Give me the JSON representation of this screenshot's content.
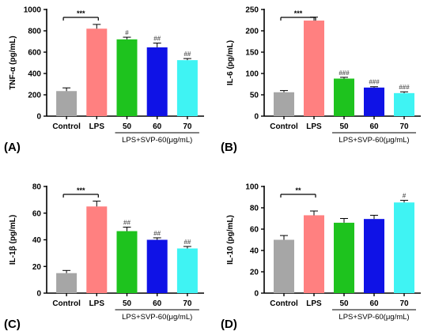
{
  "chart_data": [
    {
      "panel": "(A)",
      "type": "bar",
      "ylabel": "TNF-α (pg/mL)",
      "ylim": [
        0,
        1000
      ],
      "yticks": [
        0,
        200,
        400,
        600,
        800,
        1000
      ],
      "categories": [
        "Control",
        "LPS",
        "50",
        "60",
        "70"
      ],
      "values": [
        235,
        820,
        720,
        645,
        525
      ],
      "errors": [
        30,
        40,
        20,
        40,
        15
      ],
      "significance": [
        "",
        "",
        "#",
        "##",
        "##"
      ],
      "bracket": {
        "from": 0,
        "to": 1,
        "label": "***"
      },
      "group_label": "LPS+SVP-60(μg/mL)",
      "colors": [
        "#a6a6a6",
        "#ff8080",
        "#1ec31e",
        "#0f12e6",
        "#3ff3f3"
      ]
    },
    {
      "panel": "(B)",
      "type": "bar",
      "ylabel": "IL-6 (pg/mL)",
      "ylim": [
        0,
        250
      ],
      "yticks": [
        0,
        50,
        100,
        150,
        200,
        250
      ],
      "categories": [
        "Control",
        "LPS",
        "50",
        "60",
        "70"
      ],
      "values": [
        56,
        224,
        88,
        67,
        54
      ],
      "errors": [
        4,
        8,
        3,
        2,
        3
      ],
      "significance": [
        "",
        "",
        "###",
        "###",
        "###"
      ],
      "bracket": {
        "from": 0,
        "to": 1,
        "label": "***"
      },
      "group_label": "LPS+SVP-60(μg/mL)",
      "colors": [
        "#a6a6a6",
        "#ff8080",
        "#1ec31e",
        "#0f12e6",
        "#3ff3f3"
      ]
    },
    {
      "panel": "(C)",
      "type": "bar",
      "ylabel": "IL-1β (pg/mL)",
      "ylim": [
        0,
        80
      ],
      "yticks": [
        0,
        20,
        40,
        60,
        80
      ],
      "categories": [
        "Control",
        "LPS",
        "50",
        "60",
        "70"
      ],
      "values": [
        15,
        65,
        46.5,
        40,
        33.5
      ],
      "errors": [
        2,
        4,
        3,
        1.5,
        1.5
      ],
      "significance": [
        "",
        "",
        "##",
        "##",
        "##"
      ],
      "bracket": {
        "from": 0,
        "to": 1,
        "label": "***"
      },
      "group_label": "LPS+SVP-60(μg/mL)",
      "colors": [
        "#a6a6a6",
        "#ff8080",
        "#1ec31e",
        "#0f12e6",
        "#3ff3f3"
      ]
    },
    {
      "panel": "(D)",
      "type": "bar",
      "ylabel": "IL-10 (pg/mL)",
      "ylim": [
        0,
        100
      ],
      "yticks": [
        0,
        20,
        40,
        60,
        80,
        100
      ],
      "categories": [
        "Control",
        "LPS",
        "50",
        "60",
        "70"
      ],
      "values": [
        50,
        73,
        66,
        69.5,
        85
      ],
      "errors": [
        4,
        4,
        4,
        3.5,
        2
      ],
      "significance": [
        "",
        "",
        "",
        "",
        "#"
      ],
      "bracket": {
        "from": 0,
        "to": 1,
        "label": "**"
      },
      "group_label": "LPS+SVP-60(μg/mL)",
      "colors": [
        "#a6a6a6",
        "#ff8080",
        "#1ec31e",
        "#0f12e6",
        "#3ff3f3"
      ]
    }
  ]
}
